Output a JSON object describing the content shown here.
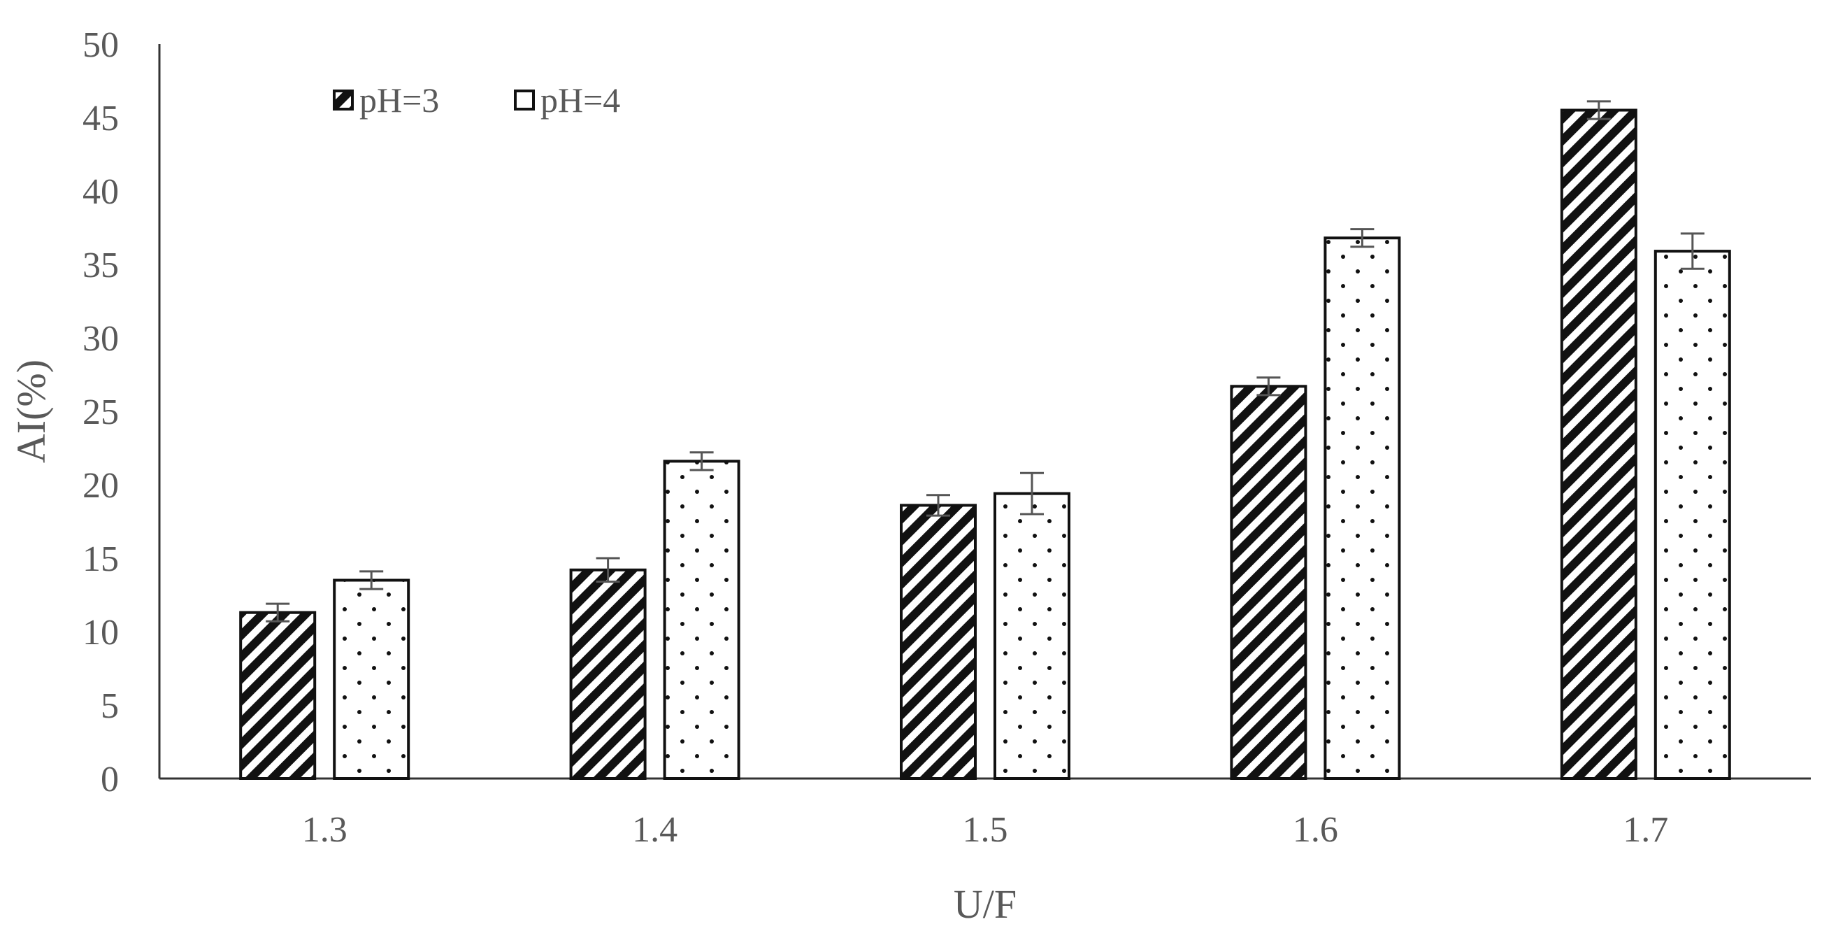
{
  "chart_data": {
    "type": "bar",
    "title": "",
    "xlabel": "U/F",
    "ylabel": "AI(%)",
    "ylim": [
      0,
      50
    ],
    "yticks": [
      "0",
      "5",
      "10",
      "15",
      "20",
      "25",
      "30",
      "35",
      "40",
      "45",
      "50"
    ],
    "categories": [
      "1.3",
      "1.4",
      "1.5",
      "1.6",
      "1.7"
    ],
    "grid": false,
    "legend_position": "top-left",
    "series": [
      {
        "name": "pH=3",
        "pattern": "diagonal-hatch",
        "values": [
          11.3,
          14.2,
          18.6,
          26.7,
          45.5
        ],
        "errors": [
          0.6,
          0.8,
          0.7,
          0.6,
          0.6
        ]
      },
      {
        "name": "pH=4",
        "pattern": "dots",
        "values": [
          13.5,
          21.6,
          19.4,
          36.8,
          35.9
        ],
        "errors": [
          0.6,
          0.6,
          1.4,
          0.6,
          1.2
        ]
      }
    ]
  }
}
